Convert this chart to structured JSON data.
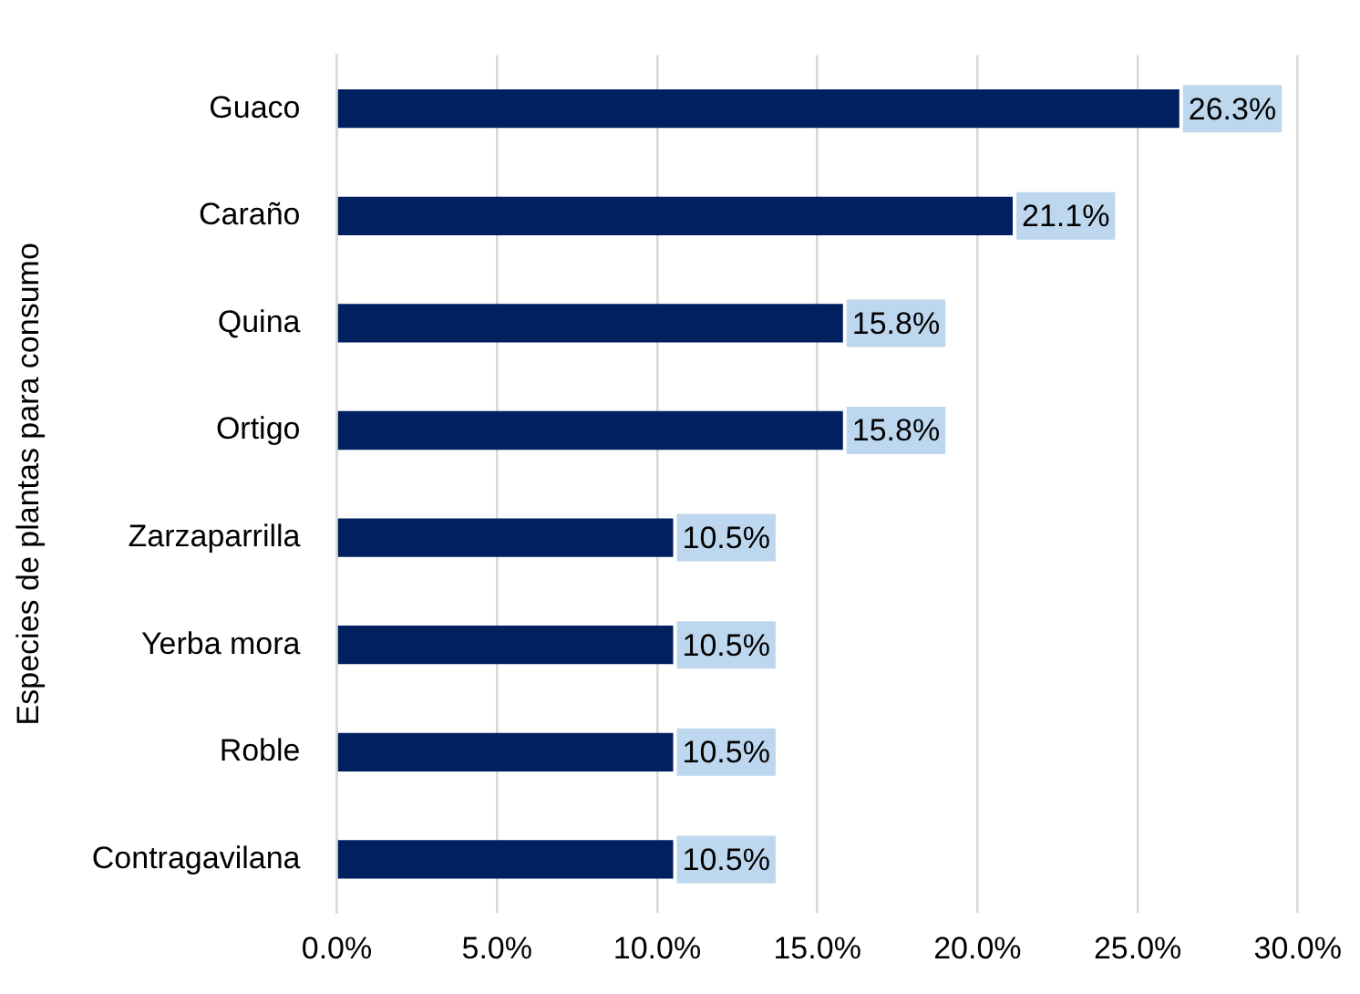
{
  "chart_data": {
    "type": "bar",
    "orientation": "horizontal",
    "ylabel": "Especies de plantas para consumo",
    "categories": [
      "Guaco",
      "Caraño",
      "Quina",
      "Ortigo",
      "Zarzaparrilla",
      "Yerba mora",
      "Roble",
      "Contragavilana"
    ],
    "values": [
      26.3,
      21.1,
      15.8,
      15.8,
      10.5,
      10.5,
      10.5,
      10.5
    ],
    "value_labels": [
      "26.3%",
      "21.1%",
      "15.8%",
      "15.8%",
      "10.5%",
      "10.5%",
      "10.5%",
      "10.5%"
    ],
    "color": "#002060",
    "xlim": [
      0,
      30
    ],
    "xticks": [
      {
        "value": 0,
        "label": "0.0%"
      },
      {
        "value": 5,
        "label": "5.0%"
      },
      {
        "value": 10,
        "label": "10.0%"
      },
      {
        "value": 15,
        "label": "15.0%"
      },
      {
        "value": 20,
        "label": "20.0%"
      },
      {
        "value": 25,
        "label": "25.0%"
      },
      {
        "value": 30,
        "label": "30.0%"
      }
    ],
    "grid": "x",
    "legend": false
  }
}
